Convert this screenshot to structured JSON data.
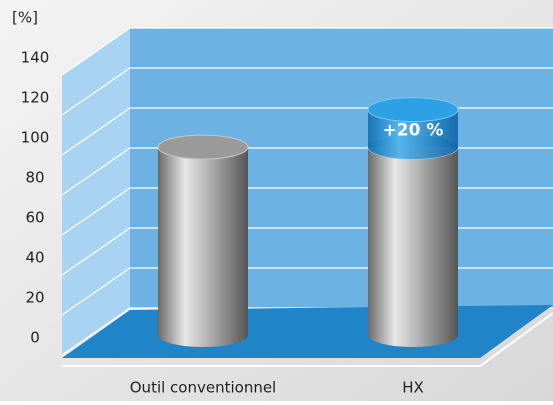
{
  "chart_data": {
    "type": "bar",
    "stacked": true,
    "y_label": "[%]",
    "categories": [
      "Outil conventionnel",
      "HX"
    ],
    "series": [
      {
        "color": "#a8a8a8",
        "values": [
          100,
          100
        ]
      },
      {
        "color": "#1e8fd6",
        "values": [
          null,
          20
        ],
        "value_labels": [
          null,
          "+20 %"
        ]
      }
    ],
    "ylim": [
      0,
      140
    ],
    "yticks": [
      0,
      20,
      40,
      60,
      80,
      100,
      120,
      140
    ],
    "grid": true
  }
}
